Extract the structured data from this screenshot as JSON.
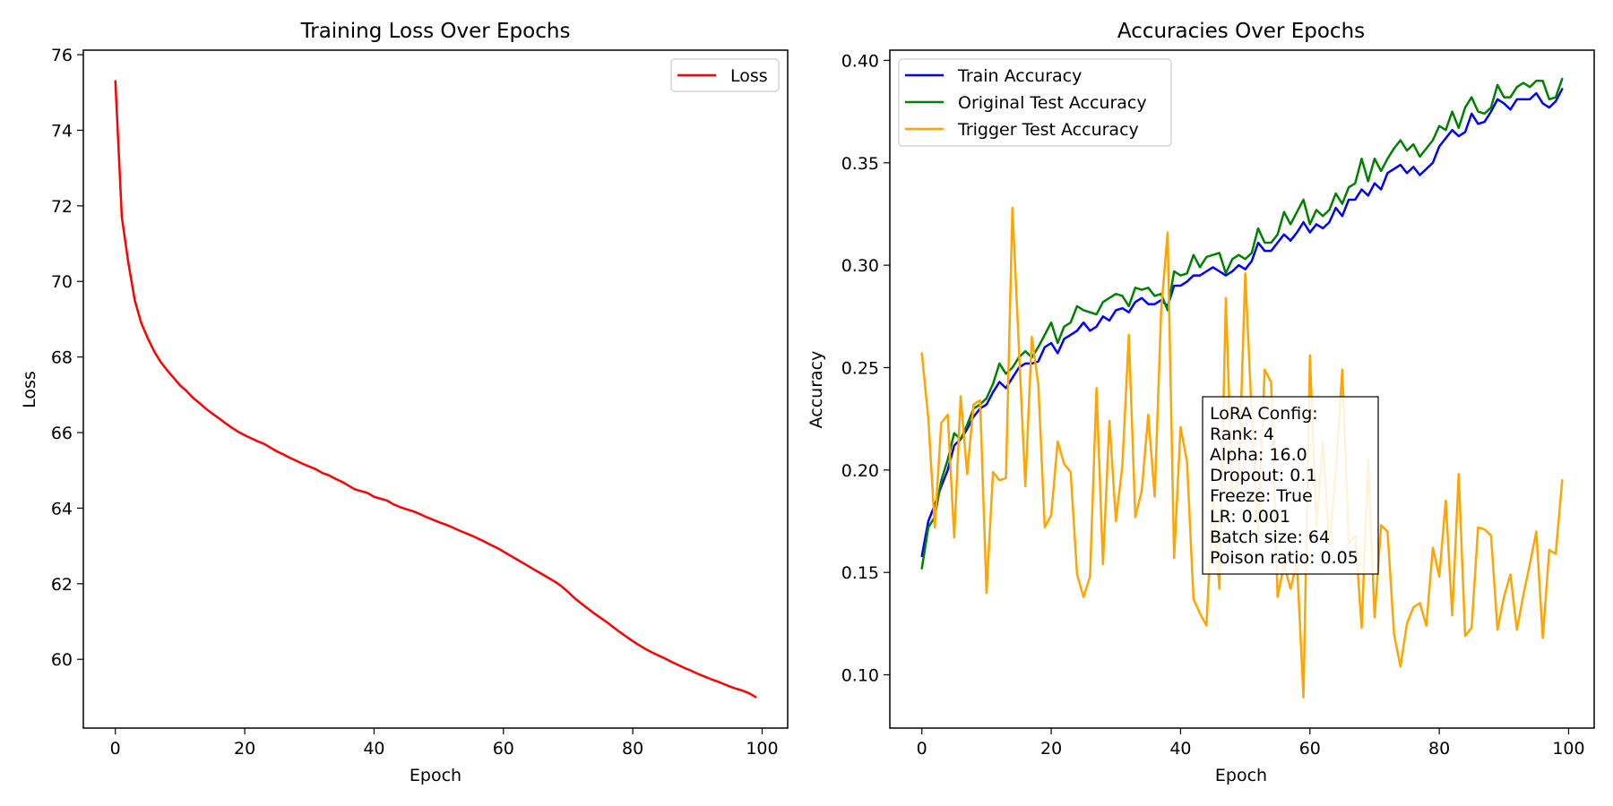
{
  "chart_data": [
    {
      "type": "line",
      "title": "Training Loss Over Epochs",
      "xlabel": "Epoch",
      "ylabel": "Loss",
      "xlim": [
        -4.95,
        103.95
      ],
      "ylim": [
        58.18,
        76.12
      ],
      "xticks": [
        0,
        20,
        40,
        60,
        80,
        100
      ],
      "yticks": [
        60,
        62,
        64,
        66,
        68,
        70,
        72,
        74,
        76
      ],
      "grid": false,
      "legend_position": "upper right",
      "series": [
        {
          "name": "Loss",
          "color": "#ff0000",
          "values": [
            75.3,
            71.7,
            70.5,
            69.5,
            68.9,
            68.5,
            68.15,
            67.87,
            67.65,
            67.45,
            67.25,
            67.1,
            66.92,
            66.78,
            66.63,
            66.5,
            66.38,
            66.25,
            66.13,
            66.02,
            65.93,
            65.85,
            65.77,
            65.7,
            65.6,
            65.5,
            65.42,
            65.33,
            65.25,
            65.17,
            65.1,
            65.03,
            64.93,
            64.87,
            64.78,
            64.7,
            64.6,
            64.5,
            64.45,
            64.4,
            64.3,
            64.25,
            64.2,
            64.1,
            64.03,
            63.97,
            63.92,
            63.85,
            63.77,
            63.7,
            63.63,
            63.57,
            63.5,
            63.42,
            63.35,
            63.28,
            63.2,
            63.12,
            63.03,
            62.95,
            62.85,
            62.75,
            62.65,
            62.55,
            62.45,
            62.35,
            62.25,
            62.15,
            62.05,
            61.93,
            61.78,
            61.62,
            61.48,
            61.35,
            61.22,
            61.1,
            60.98,
            60.85,
            60.72,
            60.6,
            60.48,
            60.37,
            60.27,
            60.18,
            60.1,
            60.02,
            59.93,
            59.85,
            59.77,
            59.7,
            59.62,
            59.55,
            59.48,
            59.42,
            59.35,
            59.28,
            59.22,
            59.17,
            59.1,
            59.0
          ]
        }
      ]
    },
    {
      "type": "line",
      "title": "Accuracies Over Epochs",
      "xlabel": "Epoch",
      "ylabel": "Accuracy",
      "xlim": [
        -4.95,
        103.95
      ],
      "ylim": [
        0.074,
        0.405
      ],
      "xticks": [
        0,
        20,
        40,
        60,
        80,
        100
      ],
      "yticks": [
        0.1,
        0.15,
        0.2,
        0.25,
        0.3,
        0.35,
        0.4
      ],
      "ytick_labels": [
        "0.10",
        "0.15",
        "0.20",
        "0.25",
        "0.30",
        "0.35",
        "0.40"
      ],
      "grid": false,
      "legend_position": "upper left",
      "series": [
        {
          "name": "Train Accuracy",
          "color": "#0000ff",
          "values": [
            0.158,
            0.175,
            0.183,
            0.192,
            0.2,
            0.212,
            0.215,
            0.22,
            0.226,
            0.23,
            0.232,
            0.238,
            0.243,
            0.24,
            0.245,
            0.25,
            0.252,
            0.252,
            0.253,
            0.26,
            0.262,
            0.257,
            0.264,
            0.266,
            0.268,
            0.272,
            0.268,
            0.27,
            0.275,
            0.273,
            0.278,
            0.279,
            0.277,
            0.282,
            0.284,
            0.281,
            0.281,
            0.283,
            0.28,
            0.29,
            0.29,
            0.292,
            0.295,
            0.295,
            0.297,
            0.299,
            0.297,
            0.295,
            0.297,
            0.3,
            0.298,
            0.302,
            0.311,
            0.307,
            0.307,
            0.311,
            0.315,
            0.312,
            0.316,
            0.321,
            0.316,
            0.32,
            0.318,
            0.321,
            0.328,
            0.324,
            0.332,
            0.332,
            0.337,
            0.334,
            0.34,
            0.337,
            0.345,
            0.347,
            0.349,
            0.345,
            0.348,
            0.344,
            0.347,
            0.35,
            0.358,
            0.362,
            0.366,
            0.363,
            0.365,
            0.374,
            0.369,
            0.37,
            0.375,
            0.381,
            0.379,
            0.376,
            0.381,
            0.381,
            0.381,
            0.384,
            0.379,
            0.377,
            0.38,
            0.386
          ]
        },
        {
          "name": "Original Test Accuracy",
          "color": "#008000",
          "values": [
            0.152,
            0.172,
            0.177,
            0.195,
            0.205,
            0.218,
            0.215,
            0.222,
            0.23,
            0.232,
            0.235,
            0.242,
            0.252,
            0.247,
            0.25,
            0.255,
            0.258,
            0.255,
            0.26,
            0.266,
            0.272,
            0.262,
            0.27,
            0.272,
            0.28,
            0.278,
            0.277,
            0.276,
            0.282,
            0.284,
            0.286,
            0.285,
            0.28,
            0.289,
            0.288,
            0.289,
            0.285,
            0.286,
            0.278,
            0.297,
            0.295,
            0.296,
            0.305,
            0.299,
            0.304,
            0.305,
            0.306,
            0.296,
            0.303,
            0.305,
            0.303,
            0.306,
            0.318,
            0.311,
            0.311,
            0.315,
            0.326,
            0.32,
            0.326,
            0.332,
            0.32,
            0.327,
            0.324,
            0.327,
            0.335,
            0.33,
            0.338,
            0.34,
            0.352,
            0.341,
            0.352,
            0.346,
            0.352,
            0.357,
            0.361,
            0.356,
            0.359,
            0.353,
            0.357,
            0.361,
            0.368,
            0.366,
            0.375,
            0.367,
            0.377,
            0.382,
            0.375,
            0.374,
            0.377,
            0.388,
            0.382,
            0.382,
            0.387,
            0.389,
            0.387,
            0.39,
            0.39,
            0.381,
            0.382,
            0.391
          ]
        },
        {
          "name": "Trigger Test Accuracy",
          "color": "#ffa500",
          "values": [
            0.257,
            0.225,
            0.172,
            0.223,
            0.227,
            0.167,
            0.236,
            0.198,
            0.232,
            0.234,
            0.14,
            0.199,
            0.195,
            0.196,
            0.328,
            0.26,
            0.192,
            0.265,
            0.242,
            0.172,
            0.178,
            0.214,
            0.203,
            0.199,
            0.149,
            0.138,
            0.148,
            0.24,
            0.154,
            0.224,
            0.175,
            0.202,
            0.266,
            0.177,
            0.19,
            0.227,
            0.187,
            0.278,
            0.316,
            0.157,
            0.221,
            0.204,
            0.137,
            0.13,
            0.124,
            0.187,
            0.142,
            0.284,
            0.186,
            0.196,
            0.296,
            0.227,
            0.168,
            0.249,
            0.243,
            0.138,
            0.154,
            0.142,
            0.155,
            0.089,
            0.256,
            0.173,
            0.214,
            0.163,
            0.199,
            0.249,
            0.164,
            0.168,
            0.123,
            0.205,
            0.128,
            0.173,
            0.17,
            0.12,
            0.104,
            0.125,
            0.133,
            0.135,
            0.124,
            0.162,
            0.148,
            0.185,
            0.129,
            0.198,
            0.119,
            0.123,
            0.172,
            0.171,
            0.168,
            0.122,
            0.138,
            0.149,
            0.122,
            0.139,
            0.154,
            0.17,
            0.118,
            0.161,
            0.159,
            0.195
          ]
        }
      ],
      "annotation": {
        "lines": [
          "LoRA Config:",
          "Rank: 4",
          "Alpha: 16.0",
          "Dropout: 0.1",
          "Freeze: True",
          "LR: 0.001",
          "Batch size: 64",
          "Poison ratio: 0.05"
        ]
      }
    }
  ]
}
